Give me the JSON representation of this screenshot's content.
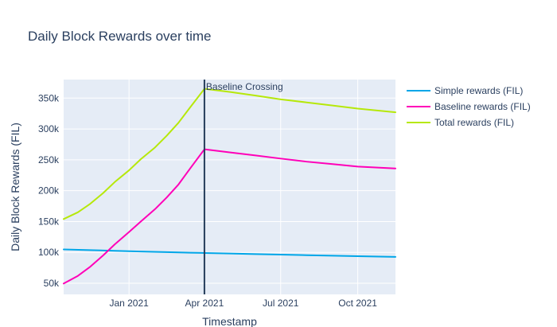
{
  "chart_data": {
    "type": "line",
    "title": "Daily Block Rewards over time",
    "xlabel": "Timestamp",
    "ylabel": "Daily Block Rewards (FIL)",
    "x_range": [
      "2020-10-15",
      "2021-11-15"
    ],
    "ylim": [
      32000,
      380000
    ],
    "x_ticks": [
      {
        "date": "2021-01-01",
        "label": "Jan 2021"
      },
      {
        "date": "2021-04-01",
        "label": "Apr 2021"
      },
      {
        "date": "2021-07-01",
        "label": "Jul 2021"
      },
      {
        "date": "2021-10-01",
        "label": "Oct 2021"
      }
    ],
    "y_ticks": [
      {
        "value": 50000,
        "label": "50k"
      },
      {
        "value": 100000,
        "label": "100k"
      },
      {
        "value": 150000,
        "label": "150k"
      },
      {
        "value": 200000,
        "label": "200k"
      },
      {
        "value": 250000,
        "label": "250k"
      },
      {
        "value": 300000,
        "label": "300k"
      },
      {
        "value": 350000,
        "label": "350k"
      }
    ],
    "grid": true,
    "legend_position": "right",
    "background_color": "#e5ecf6",
    "series": [
      {
        "name": "Simple rewards (FIL)",
        "color": "#00a6e8",
        "points": [
          {
            "x": "2020-10-15",
            "y": 104800
          },
          {
            "x": "2020-11-15",
            "y": 103700
          },
          {
            "x": "2020-12-15",
            "y": 102600
          },
          {
            "x": "2021-01-15",
            "y": 101500
          },
          {
            "x": "2021-02-15",
            "y": 100400
          },
          {
            "x": "2021-03-15",
            "y": 99500
          },
          {
            "x": "2021-04-01",
            "y": 99100
          },
          {
            "x": "2021-05-01",
            "y": 98200
          },
          {
            "x": "2021-06-01",
            "y": 97300
          },
          {
            "x": "2021-07-01",
            "y": 96400
          },
          {
            "x": "2021-08-01",
            "y": 95500
          },
          {
            "x": "2021-09-01",
            "y": 94700
          },
          {
            "x": "2021-10-01",
            "y": 93900
          },
          {
            "x": "2021-11-15",
            "y": 92800
          }
        ]
      },
      {
        "name": "Baseline rewards (FIL)",
        "color": "#ff00b8",
        "points": [
          {
            "x": "2020-10-15",
            "y": 49500
          },
          {
            "x": "2020-11-01",
            "y": 62000
          },
          {
            "x": "2020-11-15",
            "y": 76000
          },
          {
            "x": "2020-12-01",
            "y": 95000
          },
          {
            "x": "2020-12-15",
            "y": 113000
          },
          {
            "x": "2021-01-01",
            "y": 133000
          },
          {
            "x": "2021-01-15",
            "y": 150000
          },
          {
            "x": "2021-02-01",
            "y": 170000
          },
          {
            "x": "2021-02-15",
            "y": 189000
          },
          {
            "x": "2021-03-01",
            "y": 210000
          },
          {
            "x": "2021-03-15",
            "y": 236000
          },
          {
            "x": "2021-04-01",
            "y": 267000
          },
          {
            "x": "2021-05-01",
            "y": 262000
          },
          {
            "x": "2021-06-01",
            "y": 257000
          },
          {
            "x": "2021-07-01",
            "y": 252000
          },
          {
            "x": "2021-08-01",
            "y": 247000
          },
          {
            "x": "2021-09-01",
            "y": 243000
          },
          {
            "x": "2021-10-01",
            "y": 239000
          },
          {
            "x": "2021-11-15",
            "y": 236000
          }
        ]
      },
      {
        "name": "Total rewards (FIL)",
        "color": "#b6e80a",
        "points": [
          {
            "x": "2020-10-15",
            "y": 154000
          },
          {
            "x": "2020-11-01",
            "y": 165000
          },
          {
            "x": "2020-11-15",
            "y": 178000
          },
          {
            "x": "2020-12-01",
            "y": 196000
          },
          {
            "x": "2020-12-15",
            "y": 214000
          },
          {
            "x": "2021-01-01",
            "y": 233000
          },
          {
            "x": "2021-01-15",
            "y": 251000
          },
          {
            "x": "2021-02-01",
            "y": 270000
          },
          {
            "x": "2021-02-15",
            "y": 289000
          },
          {
            "x": "2021-03-01",
            "y": 310000
          },
          {
            "x": "2021-03-15",
            "y": 335000
          },
          {
            "x": "2021-04-01",
            "y": 365000
          },
          {
            "x": "2021-05-01",
            "y": 360000
          },
          {
            "x": "2021-06-01",
            "y": 354000
          },
          {
            "x": "2021-07-01",
            "y": 348000
          },
          {
            "x": "2021-08-01",
            "y": 343000
          },
          {
            "x": "2021-09-01",
            "y": 338000
          },
          {
            "x": "2021-10-01",
            "y": 333000
          },
          {
            "x": "2021-11-15",
            "y": 327000
          }
        ]
      }
    ],
    "annotations": [
      {
        "label": "Baseline Crossing",
        "x": "2021-04-01",
        "type": "vertical-line",
        "color": "#243c5a"
      }
    ]
  }
}
